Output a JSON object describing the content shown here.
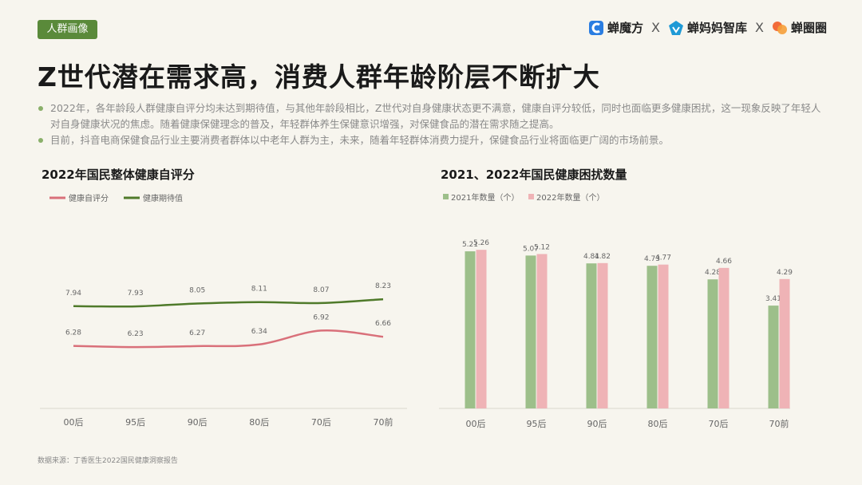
{
  "tag": "人群画像",
  "logos": [
    {
      "name": "蝉魔方",
      "color": "#2a7de1"
    },
    {
      "name": "蝉妈妈智库",
      "color": "#1f9ad6"
    },
    {
      "name": "蝉圈圈",
      "color": "#f26b3a"
    }
  ],
  "separator": "X",
  "title": "Z世代潜在需求高，消费人群年龄阶层不断扩大",
  "bullets": [
    "2022年，各年龄段人群健康自评分均未达到期待值，与其他年龄段相比，Z世代对自身健康状态更不满意，健康自评分较低，同时也面临更多健康困扰，这一现象反映了年轻人对自身健康状况的焦虑。随着健康保健理念的普及，年轻群体养生保健意识增强，对保健食品的潜在需求随之提高。",
    "目前，抖音电商保健食品行业主要消费者群体以中老年人群为主，未来，随着年轻群体消费力提升，保健食品行业将面临更广阔的市场前景。"
  ],
  "source": "数据来源：丁香医生2022国民健康洞察报告",
  "chart_data": [
    {
      "type": "line",
      "title": "2022年国民整体健康自评分",
      "categories": [
        "00后",
        "95后",
        "90后",
        "80后",
        "70后",
        "70前"
      ],
      "series": [
        {
          "name": "健康自评分",
          "color": "#d9707a",
          "values": [
            6.28,
            6.23,
            6.27,
            6.34,
            6.92,
            6.66
          ]
        },
        {
          "name": "健康期待值",
          "color": "#4f7a2a",
          "values": [
            7.94,
            7.93,
            8.05,
            8.11,
            8.07,
            8.23
          ]
        }
      ]
    },
    {
      "type": "bar",
      "title": "2021、2022年国民健康困扰数量",
      "categories": [
        "00后",
        "95后",
        "90后",
        "80后",
        "70后",
        "70前"
      ],
      "series": [
        {
          "name": "2021年数量（个）",
          "color": "#9dbf8a",
          "values": [
            5.21,
            5.07,
            4.81,
            4.73,
            4.28,
            3.41
          ]
        },
        {
          "name": "2022年数量（个）",
          "color": "#efb3b6",
          "values": [
            5.26,
            5.12,
            4.82,
            4.77,
            4.66,
            4.29
          ]
        }
      ],
      "ylim": [
        0,
        6
      ]
    }
  ]
}
